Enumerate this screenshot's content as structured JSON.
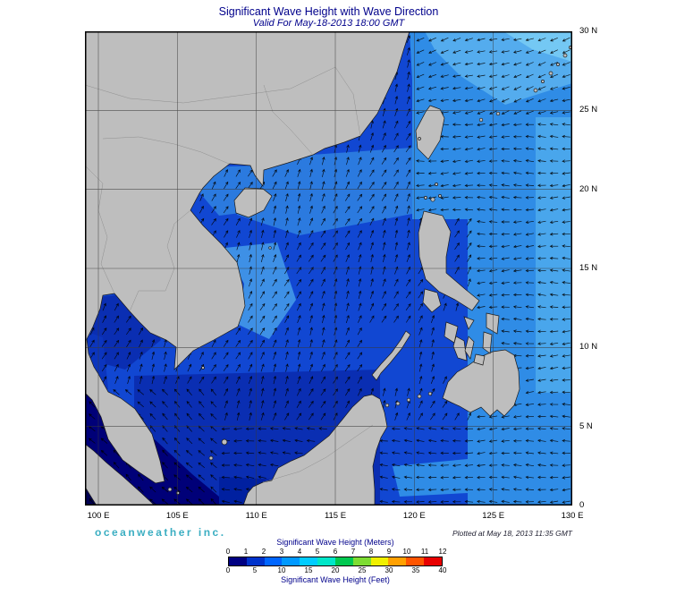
{
  "title": "Significant Wave Height with Wave Direction",
  "subtitle": "Valid For May-18-2013 18:00 GMT",
  "credit": "oceanweather inc.",
  "plotted": "Plotted at May 18, 2013 11:35 GMT",
  "axes": {
    "lon_labels": [
      "100 E",
      "105 E",
      "110 E",
      "115 E",
      "120 E",
      "125 E",
      "130 E"
    ],
    "lat_labels": [
      "30 N",
      "25 N",
      "20 N",
      "15 N",
      "10 N",
      "5 N",
      "0"
    ]
  },
  "legend": {
    "meters_title": "Significant Wave Height (Meters)",
    "feet_title": "Significant Wave Height (Feet)",
    "meters_ticks": [
      "0",
      "1",
      "2",
      "3",
      "4",
      "5",
      "6",
      "7",
      "8",
      "9",
      "10",
      "11",
      "12"
    ],
    "feet_ticks": [
      "0",
      "5",
      "10",
      "15",
      "20",
      "25",
      "30",
      "35",
      "40"
    ],
    "colors": [
      "#000082",
      "#0033CC",
      "#0066FF",
      "#0099FF",
      "#00CCFF",
      "#00E6C8",
      "#00C850",
      "#7DDC32",
      "#F0F000",
      "#FFA000",
      "#FF5500",
      "#E80000"
    ]
  },
  "map": {
    "land_color": "#BEBEBE",
    "coast_color": "#1A1A1A",
    "ocean_base_color": "#1147D2",
    "grid_color": "#3A3A3A",
    "arrow_color": "#000000",
    "border_color": "#909090"
  }
}
